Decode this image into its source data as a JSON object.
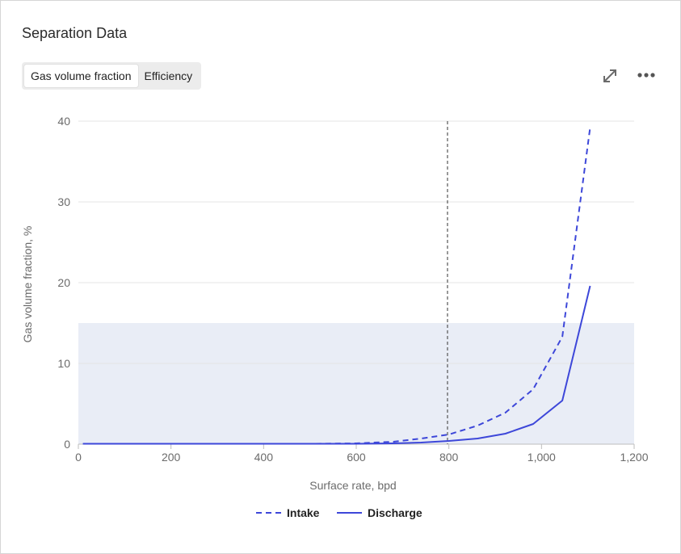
{
  "header": {
    "title": "Separation Data",
    "tabs": [
      {
        "label": "Gas volume fraction",
        "active": true
      },
      {
        "label": "Efficiency",
        "active": false
      }
    ]
  },
  "toolbar": {
    "expand_icon": "expand-icon",
    "more_icon": "more-horizontal-icon"
  },
  "colors": {
    "series": "#3d47d9",
    "band": "#e9edf6",
    "marker_line": "#555555",
    "grid": "#e4e4e4",
    "axis_text": "#6b6b6b"
  },
  "chart_data": {
    "type": "line",
    "xlabel": "Surface rate, bpd",
    "ylabel": "Gas volume fraction, %",
    "xlim": [
      0,
      1200
    ],
    "ylim": [
      0,
      40
    ],
    "x_ticks": [
      "0",
      "200",
      "400",
      "600",
      "800",
      "1,000",
      "1,200"
    ],
    "y_ticks": [
      "0",
      "10",
      "20",
      "30",
      "40"
    ],
    "x_tick_values": [
      0,
      200,
      400,
      600,
      800,
      1000,
      1200
    ],
    "y_tick_values": [
      0,
      10,
      20,
      30,
      40
    ],
    "grid": "horizontal",
    "legend_position": "bottom-center",
    "shaded_band": {
      "y_from": 0,
      "y_to": 15
    },
    "vertical_marker_x": 797,
    "series": [
      {
        "name": "Intake",
        "style": "dashed",
        "x": [
          10,
          100,
          200,
          300,
          400,
          500,
          600,
          680,
          740,
          800,
          862,
          922,
          982,
          1045,
          1105
        ],
        "y": [
          0.05,
          0.05,
          0.05,
          0.05,
          0.05,
          0.05,
          0.1,
          0.3,
          0.7,
          1.2,
          2.3,
          3.9,
          6.8,
          13.3,
          39.2
        ]
      },
      {
        "name": "Discharge",
        "style": "solid",
        "x": [
          10,
          100,
          200,
          300,
          400,
          500,
          600,
          680,
          740,
          800,
          862,
          922,
          982,
          1045,
          1105
        ],
        "y": [
          0.05,
          0.05,
          0.05,
          0.05,
          0.05,
          0.05,
          0.05,
          0.1,
          0.2,
          0.4,
          0.7,
          1.3,
          2.5,
          5.4,
          19.6
        ]
      }
    ]
  }
}
